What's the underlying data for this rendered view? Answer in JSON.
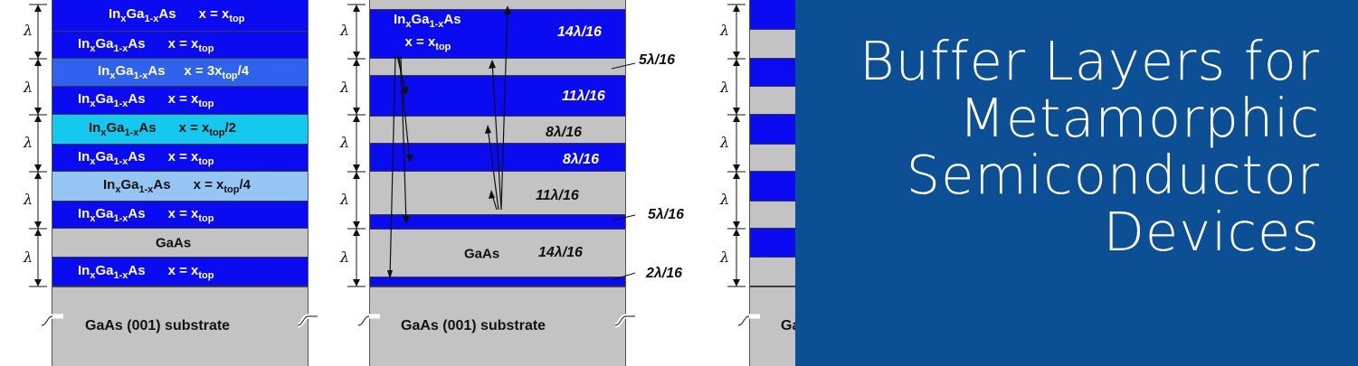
{
  "lambda_symbol": "λ",
  "panel1": {
    "layers": [
      {
        "material": "InxGa1-xAs",
        "composition": "x = xtop",
        "color": "#0b0bf2"
      },
      {
        "material": "InxGa1-xAs",
        "composition": "x = xtop",
        "color": "#0b0bf2"
      },
      {
        "material": "InxGa1-xAs",
        "composition": "x = 3xtop/4",
        "color": "#2f63ee"
      },
      {
        "material": "InxGa1-xAs",
        "composition": "x = xtop",
        "color": "#0b0bf2"
      },
      {
        "material": "InxGa1-xAs",
        "composition": "x = xtop/2",
        "color": "#14c8ee"
      },
      {
        "material": "InxGa1-xAs",
        "composition": "x = xtop",
        "color": "#0b0bf2"
      },
      {
        "material": "InxGa1-xAs",
        "composition": "x = xtop/4",
        "color": "#95c6f3"
      },
      {
        "material": "InxGa1-xAs",
        "composition": "x = xtop",
        "color": "#0b0bf2"
      },
      {
        "material": "GaAs",
        "composition": "",
        "color": "#c3c3c3"
      },
      {
        "material": "InxGa1-xAs",
        "composition": "x = xtop",
        "color": "#0b0bf2"
      }
    ],
    "substrate": "GaAs (001) substrate"
  },
  "panel2": {
    "top_layer_label": "InxGa1-xAs",
    "top_layer_composition": "x = xtop",
    "gaas_label": "GaAs",
    "thickness_labels": [
      "14λ/16",
      "5λ/16",
      "11λ/16",
      "8λ/16",
      "8λ/16",
      "11λ/16",
      "5λ/16",
      "14λ/16",
      "2λ/16"
    ],
    "substrate": "GaAs (001) substrate"
  },
  "panel3": {
    "substrate_partial": "Ga"
  },
  "title": {
    "line1": "Buffer Layers for",
    "line2": "Metamorphic",
    "line3": "Semiconductor",
    "line4": "Devices"
  },
  "colors": {
    "blue": "#0b0bf2",
    "gray": "#c3c3c3",
    "title_background": "#0d4f95"
  }
}
